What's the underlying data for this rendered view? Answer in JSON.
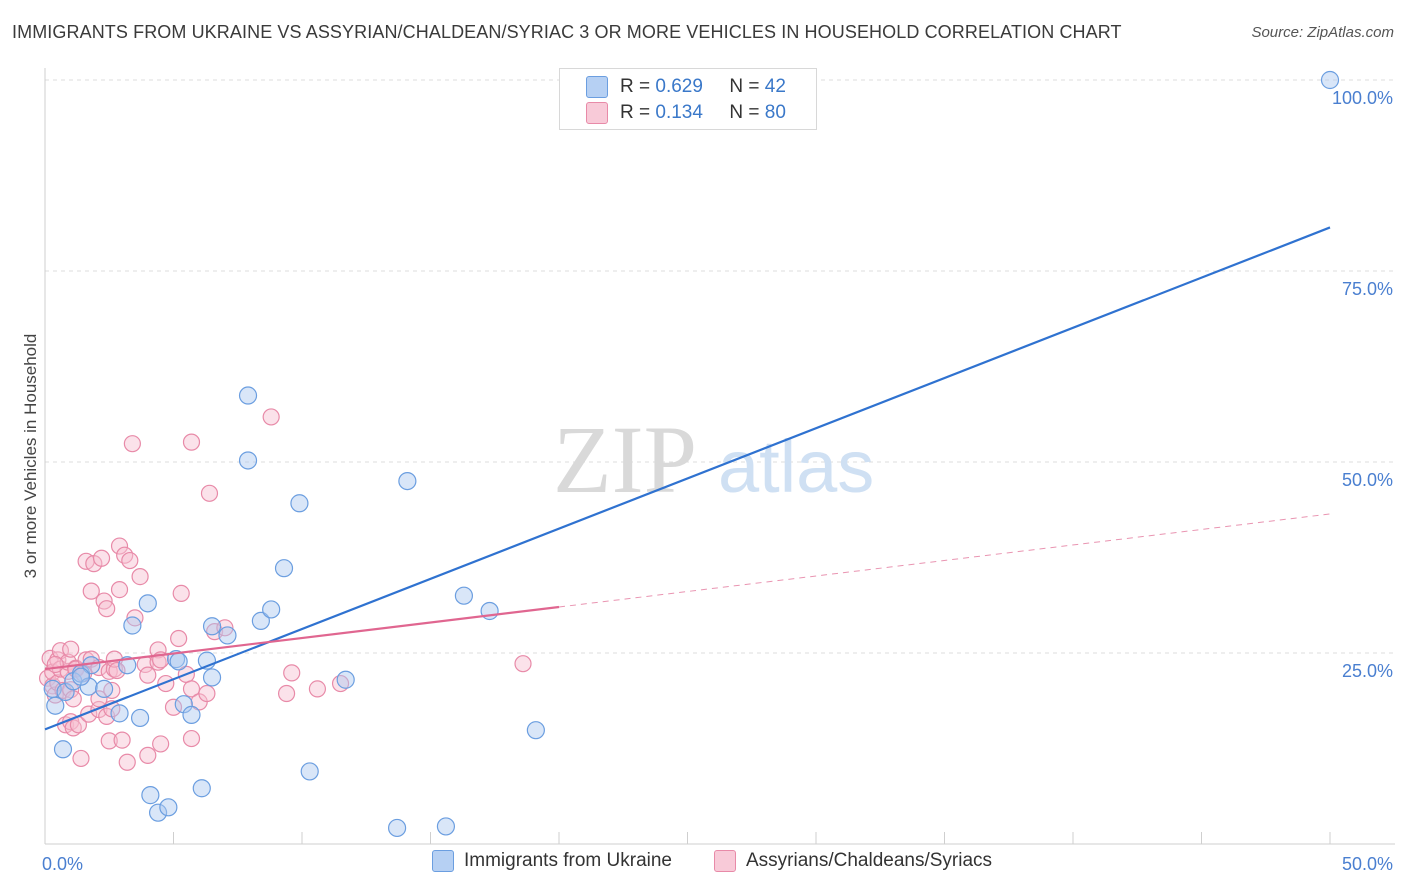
{
  "header": {
    "title": "IMMIGRANTS FROM UKRAINE VS ASSYRIAN/CHALDEAN/SYRIAC 3 OR MORE VEHICLES IN HOUSEHOLD CORRELATION CHART",
    "source": "Source: ZipAtlas.com"
  },
  "legend_top": {
    "rows": [
      {
        "r_label": "R = ",
        "r_value": "0.629",
        "n_label": "N = ",
        "n_value": "42"
      },
      {
        "r_label": "R = ",
        "r_value": "0.134",
        "n_label": "N = ",
        "n_value": "80"
      }
    ]
  },
  "legend_bottom": {
    "items": [
      "Immigrants from Ukraine",
      "Assyrians/Chaldeans/Syriacs"
    ]
  },
  "watermark": {
    "zip": "ZIP",
    "atlas": "atlas"
  },
  "colors": {
    "blue_fill": "#aac8f0",
    "blue_stroke": "#6b9ee0",
    "blue_line": "#2f72d0",
    "pink_fill": "#f6bfd0",
    "pink_stroke": "#e88aa8",
    "pink_line": "#e06690",
    "tick_label": "#4a7fd0",
    "grid": "#dddddd"
  },
  "chart_data": {
    "type": "scatter",
    "xlabel": "",
    "ylabel": "3 or more Vehicles in Household",
    "xlim": [
      0,
      50
    ],
    "ylim": [
      0,
      100
    ],
    "x_tick_labels": [
      "0.0%",
      "50.0%"
    ],
    "y_tick_labels": [
      "100.0%",
      "75.0%",
      "50.0%",
      "25.0%"
    ],
    "y_tick_values": [
      100,
      75,
      50,
      25
    ],
    "grid": true,
    "series": [
      {
        "name": "Immigrants from Ukraine",
        "color": "blue",
        "r": 0.629,
        "n": 42,
        "trend": {
          "x0": 0,
          "y0": 15.0,
          "x1": 50,
          "y1": 80.7,
          "dashed_from": null
        },
        "points": [
          [
            0.3,
            20.3
          ],
          [
            0.4,
            18.1
          ],
          [
            0.7,
            12.4
          ],
          [
            0.8,
            19.9
          ],
          [
            1.1,
            21.3
          ],
          [
            1.4,
            22.3
          ],
          [
            1.7,
            20.6
          ],
          [
            1.8,
            23.4
          ],
          [
            2.3,
            20.3
          ],
          [
            2.9,
            17.1
          ],
          [
            3.2,
            23.4
          ],
          [
            3.7,
            16.5
          ],
          [
            4.1,
            6.4
          ],
          [
            4.4,
            4.1
          ],
          [
            4.8,
            4.8
          ],
          [
            4.0,
            31.5
          ],
          [
            3.4,
            28.6
          ],
          [
            5.1,
            24.2
          ],
          [
            5.2,
            23.9
          ],
          [
            5.4,
            18.3
          ],
          [
            5.7,
            16.9
          ],
          [
            6.1,
            7.3
          ],
          [
            6.3,
            24.0
          ],
          [
            6.5,
            21.8
          ],
          [
            6.5,
            28.5
          ],
          [
            7.1,
            27.3
          ],
          [
            7.9,
            50.2
          ],
          [
            7.9,
            58.7
          ],
          [
            8.4,
            29.2
          ],
          [
            8.8,
            30.7
          ],
          [
            9.3,
            36.1
          ],
          [
            9.9,
            44.6
          ],
          [
            10.3,
            9.5
          ],
          [
            11.7,
            21.5
          ],
          [
            13.7,
            2.1
          ],
          [
            14.1,
            47.5
          ],
          [
            15.6,
            2.3
          ],
          [
            16.3,
            32.5
          ],
          [
            17.3,
            30.5
          ],
          [
            19.1,
            14.9
          ],
          [
            1.4,
            21.9
          ],
          [
            50.0,
            100.0
          ]
        ]
      },
      {
        "name": "Assyrians/Chaldeans/Syriacs",
        "color": "pink",
        "r": 0.134,
        "n": 80,
        "trend": {
          "x0": 0,
          "y0": 22.9,
          "x1": 50,
          "y1": 43.2,
          "dashed_from": 20.0
        },
        "points": [
          [
            0.1,
            21.7
          ],
          [
            0.2,
            24.3
          ],
          [
            0.3,
            20.7
          ],
          [
            0.3,
            22.5
          ],
          [
            0.4,
            19.5
          ],
          [
            0.5,
            24.1
          ],
          [
            0.5,
            21.1
          ],
          [
            0.6,
            22.9
          ],
          [
            0.6,
            25.3
          ],
          [
            0.7,
            20.1
          ],
          [
            0.8,
            15.6
          ],
          [
            0.9,
            22.6
          ],
          [
            0.9,
            23.8
          ],
          [
            1.0,
            25.5
          ],
          [
            1.0,
            16.0
          ],
          [
            1.0,
            20.2
          ],
          [
            1.1,
            19.0
          ],
          [
            1.1,
            15.2
          ],
          [
            1.2,
            23.0
          ],
          [
            1.2,
            22.9
          ],
          [
            1.2,
            22.9
          ],
          [
            1.3,
            15.6
          ],
          [
            1.4,
            11.2
          ],
          [
            1.5,
            22.3
          ],
          [
            1.6,
            24.1
          ],
          [
            1.6,
            37.0
          ],
          [
            1.7,
            17.0
          ],
          [
            1.8,
            33.1
          ],
          [
            1.8,
            24.2
          ],
          [
            1.9,
            36.7
          ],
          [
            2.1,
            17.6
          ],
          [
            2.1,
            23.1
          ],
          [
            2.1,
            19.0
          ],
          [
            2.2,
            37.4
          ],
          [
            2.3,
            31.8
          ],
          [
            2.4,
            30.8
          ],
          [
            2.4,
            16.7
          ],
          [
            2.5,
            22.6
          ],
          [
            2.5,
            13.5
          ],
          [
            2.6,
            20.1
          ],
          [
            2.6,
            17.7
          ],
          [
            2.7,
            22.9
          ],
          [
            2.7,
            24.2
          ],
          [
            2.8,
            22.7
          ],
          [
            2.9,
            39.0
          ],
          [
            2.9,
            33.3
          ],
          [
            3.0,
            13.6
          ],
          [
            3.1,
            37.8
          ],
          [
            3.2,
            10.7
          ],
          [
            3.3,
            37.1
          ],
          [
            3.4,
            52.4
          ],
          [
            3.5,
            29.6
          ],
          [
            3.7,
            35.0
          ],
          [
            3.9,
            23.5
          ],
          [
            4.0,
            11.6
          ],
          [
            4.0,
            22.1
          ],
          [
            4.4,
            25.4
          ],
          [
            4.4,
            23.8
          ],
          [
            4.5,
            24.1
          ],
          [
            4.5,
            13.1
          ],
          [
            4.7,
            21.0
          ],
          [
            5.0,
            17.9
          ],
          [
            5.2,
            26.9
          ],
          [
            5.3,
            32.8
          ],
          [
            5.5,
            22.2
          ],
          [
            5.7,
            20.3
          ],
          [
            5.7,
            13.8
          ],
          [
            5.7,
            52.6
          ],
          [
            6.0,
            18.6
          ],
          [
            6.3,
            19.7
          ],
          [
            6.4,
            45.9
          ],
          [
            6.6,
            27.8
          ],
          [
            7.0,
            28.3
          ],
          [
            8.8,
            55.9
          ],
          [
            9.4,
            19.7
          ],
          [
            9.6,
            22.4
          ],
          [
            10.6,
            20.3
          ],
          [
            11.5,
            21.0
          ],
          [
            18.6,
            23.6
          ],
          [
            0.4,
            23.5
          ]
        ]
      }
    ]
  }
}
